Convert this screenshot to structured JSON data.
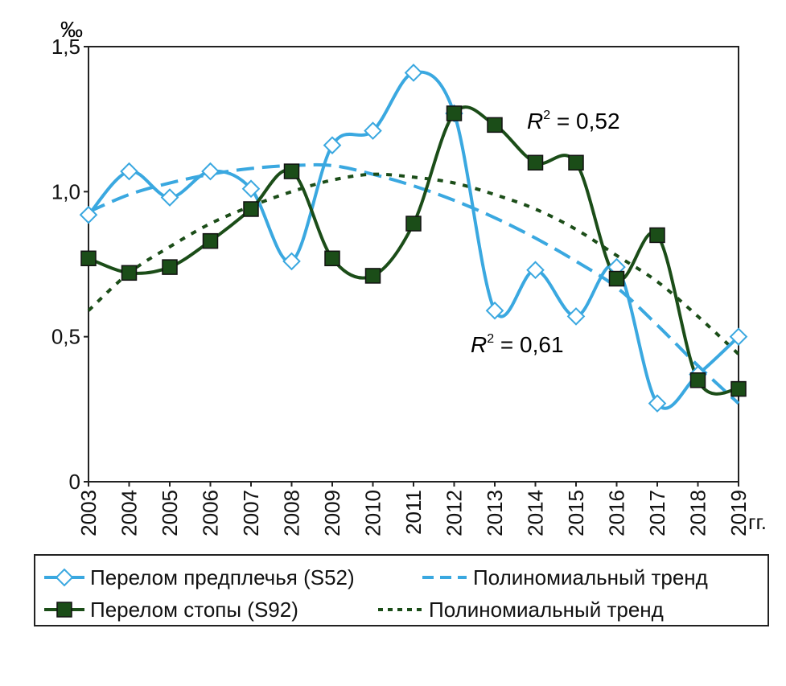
{
  "chart_data": {
    "type": "line",
    "ylabel": "‰",
    "xlabel_suffix": "гг.",
    "ylim": [
      0,
      1.5
    ],
    "yticks": [
      "0",
      "0,5",
      "1,0",
      "1,5"
    ],
    "ytick_values": [
      0,
      0.5,
      1.0,
      1.5
    ],
    "x": [
      "2003",
      "2004",
      "2005",
      "2006",
      "2007",
      "2008",
      "2009",
      "2010",
      "2011",
      "2012",
      "2013",
      "2014",
      "2015",
      "2016",
      "2017",
      "2018",
      "2019"
    ],
    "series": [
      {
        "name": "Перелом предплечья (S52)",
        "color": "#3aa8e0",
        "marker": "diamond",
        "values": [
          0.92,
          1.07,
          0.98,
          1.07,
          1.01,
          0.76,
          1.16,
          1.21,
          1.41,
          1.27,
          0.59,
          0.73,
          0.57,
          0.74,
          0.27,
          0.37,
          0.5
        ]
      },
      {
        "name": "Перелом стопы (S92)",
        "color": "#1b4d18",
        "marker": "square",
        "values": [
          0.77,
          0.72,
          0.74,
          0.83,
          0.94,
          1.07,
          0.77,
          0.71,
          0.89,
          1.27,
          1.23,
          1.1,
          1.1,
          0.7,
          0.85,
          0.35,
          0.32
        ]
      },
      {
        "name": "Полиномиальный тренд",
        "color": "#3aa8e0",
        "style": "dashed",
        "values": [
          0.93,
          0.99,
          1.03,
          1.06,
          1.08,
          1.09,
          1.09,
          1.06,
          1.02,
          0.97,
          0.91,
          0.84,
          0.76,
          0.67,
          0.54,
          0.4,
          0.27
        ]
      },
      {
        "name": "Полиномиальный тренд",
        "color": "#1b4d18",
        "style": "dotted",
        "values": [
          0.59,
          0.72,
          0.81,
          0.89,
          0.95,
          1.0,
          1.04,
          1.06,
          1.05,
          1.03,
          0.99,
          0.94,
          0.87,
          0.78,
          0.69,
          0.57,
          0.44
        ]
      }
    ],
    "annotations": [
      {
        "label": "R",
        "sup": "2",
        "text": " = 0,52"
      },
      {
        "label": "R",
        "sup": "2",
        "text": " = 0,61"
      }
    ],
    "legend": "bottom"
  }
}
